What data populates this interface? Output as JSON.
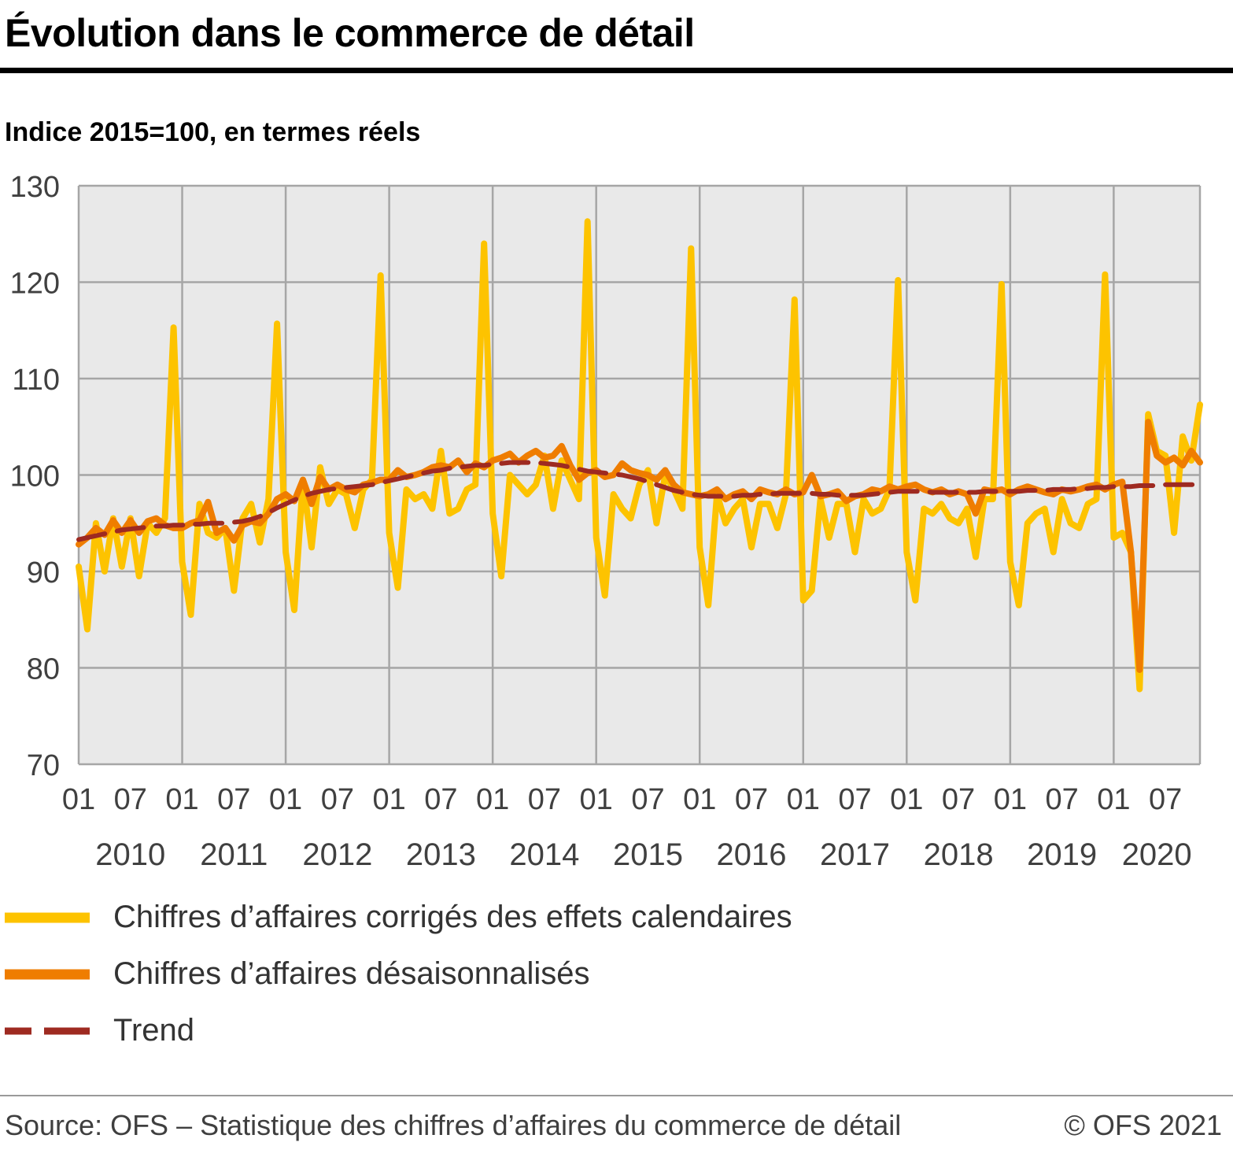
{
  "header": {
    "title": "Évolution dans le commerce de détail",
    "subtitle": "Indice 2015=100, en termes réels"
  },
  "footer": {
    "source": "Source: OFS – Statistique des chiffres d’affaires du commerce de détail",
    "copyright": "© OFS 2021"
  },
  "chart_data": {
    "type": "line",
    "title": "Évolution dans le commerce de détail",
    "subtitle": "Indice 2015=100, en termes réels",
    "x_unit": "month",
    "x_start": "2010-01",
    "x_end": "2020-11",
    "years": [
      2010,
      2011,
      2012,
      2013,
      2014,
      2015,
      2016,
      2017,
      2018,
      2019,
      2020
    ],
    "month_tick_labels": [
      "01",
      "07"
    ],
    "ylim": [
      70,
      130
    ],
    "yticks": [
      70,
      80,
      90,
      100,
      110,
      120,
      130
    ],
    "grid": true,
    "legend_position": "bottom",
    "colors": {
      "plot_bg": "#e9e9e9",
      "grid": "#a6a6a6"
    },
    "series": [
      {
        "name": "Chiffres d’affaires corrigés des effets calendaires",
        "color": "#fdc300",
        "width": 8,
        "dash": null,
        "values": [
          90.5,
          84.0,
          95.0,
          90.0,
          95.5,
          90.5,
          95.5,
          89.5,
          95.0,
          94.0,
          95.5,
          115.3,
          91.0,
          85.5,
          97.0,
          94.0,
          93.5,
          94.5,
          88.0,
          95.5,
          97.0,
          93.0,
          97.5,
          115.7,
          92.0,
          86.0,
          99.5,
          92.5,
          100.8,
          97.0,
          98.5,
          98.0,
          94.5,
          98.5,
          99.5,
          120.7,
          94.0,
          88.3,
          98.5,
          97.5,
          98.0,
          96.5,
          102.5,
          96.0,
          96.5,
          98.5,
          99.0,
          124.0,
          96.0,
          89.5,
          100.0,
          99.0,
          98.0,
          99.0,
          102.0,
          96.5,
          101.5,
          99.5,
          97.5,
          126.3,
          93.5,
          87.5,
          98.0,
          96.5,
          95.5,
          99.0,
          100.5,
          95.0,
          100.0,
          98.5,
          96.5,
          123.5,
          92.5,
          86.5,
          98.0,
          95.0,
          96.5,
          97.5,
          92.5,
          97.0,
          97.0,
          94.5,
          98.0,
          118.2,
          87.0,
          88.0,
          97.5,
          93.5,
          97.0,
          97.0,
          92.0,
          97.5,
          96.0,
          96.5,
          98.5,
          120.2,
          92.0,
          87.0,
          96.5,
          96.0,
          97.0,
          95.5,
          95.0,
          96.5,
          91.5,
          97.5,
          97.5,
          119.8,
          91.0,
          86.5,
          95.0,
          96.0,
          96.5,
          92.0,
          97.5,
          95.0,
          94.5,
          97.0,
          97.5,
          120.8,
          93.5,
          94.0,
          92.0,
          77.8,
          106.3,
          102.5,
          102.0,
          94.0,
          104.0,
          101.5,
          107.3
        ]
      },
      {
        "name": "Chiffres d’affaires désaisonnalisés",
        "color": "#ef7d00",
        "width": 8,
        "dash": null,
        "values": [
          92.8,
          93.5,
          94.5,
          93.8,
          95.3,
          94.0,
          95.3,
          94.0,
          95.2,
          95.5,
          94.8,
          94.5,
          94.5,
          95.0,
          95.3,
          97.2,
          94.0,
          94.5,
          93.2,
          94.8,
          95.2,
          95.0,
          96.0,
          97.5,
          98.0,
          97.3,
          99.5,
          97.0,
          99.8,
          98.5,
          99.0,
          98.5,
          98.2,
          99.0,
          99.2,
          99.5,
          99.5,
          100.5,
          99.8,
          100.0,
          100.3,
          100.8,
          101.0,
          100.8,
          101.5,
          100.3,
          101.2,
          100.8,
          101.5,
          101.8,
          102.2,
          101.3,
          102.0,
          102.5,
          101.8,
          102.0,
          103.0,
          101.0,
          99.5,
          100.2,
          100.5,
          99.8,
          100.0,
          101.2,
          100.5,
          100.2,
          100.0,
          99.5,
          100.5,
          99.0,
          98.2,
          98.0,
          97.8,
          98.0,
          98.5,
          97.5,
          98.0,
          98.3,
          97.5,
          98.5,
          98.2,
          98.0,
          98.5,
          98.0,
          98.2,
          100.0,
          97.8,
          98.0,
          98.3,
          97.3,
          97.8,
          98.0,
          98.5,
          98.3,
          98.8,
          98.5,
          98.8,
          99.0,
          98.5,
          98.2,
          98.5,
          98.0,
          98.3,
          98.0,
          96.0,
          98.5,
          98.3,
          98.5,
          98.0,
          98.5,
          98.8,
          98.5,
          98.2,
          98.0,
          98.5,
          98.3,
          98.5,
          98.8,
          99.0,
          98.5,
          99.0,
          99.3,
          92.0,
          79.8,
          105.5,
          102.0,
          101.3,
          101.8,
          101.0,
          102.5,
          101.3
        ]
      },
      {
        "name": "Trend",
        "color": "#9e2a21",
        "width": 6,
        "dash": "34 16",
        "legend_dash": "34 16 66 16",
        "values": [
          93.3,
          93.5,
          93.7,
          93.9,
          94.1,
          94.3,
          94.4,
          94.5,
          94.6,
          94.7,
          94.7,
          94.8,
          94.8,
          94.9,
          94.9,
          95.0,
          95.0,
          95.0,
          95.1,
          95.2,
          95.4,
          95.7,
          96.1,
          96.6,
          97.0,
          97.4,
          97.8,
          98.1,
          98.3,
          98.5,
          98.6,
          98.7,
          98.8,
          98.9,
          99.0,
          99.2,
          99.4,
          99.6,
          99.8,
          100.0,
          100.2,
          100.4,
          100.5,
          100.7,
          100.8,
          100.9,
          101.0,
          101.0,
          101.1,
          101.2,
          101.3,
          101.3,
          101.3,
          101.3,
          101.2,
          101.1,
          101.0,
          100.8,
          100.6,
          100.4,
          100.3,
          100.2,
          100.1,
          100.0,
          99.8,
          99.6,
          99.3,
          99.0,
          98.7,
          98.4,
          98.2,
          98.0,
          97.9,
          97.8,
          97.8,
          97.8,
          97.8,
          97.9,
          97.9,
          98.0,
          98.0,
          98.1,
          98.1,
          98.1,
          98.1,
          98.1,
          98.0,
          98.0,
          97.9,
          97.9,
          97.9,
          97.9,
          98.0,
          98.1,
          98.2,
          98.3,
          98.3,
          98.3,
          98.3,
          98.2,
          98.2,
          98.2,
          98.2,
          98.2,
          98.2,
          98.3,
          98.3,
          98.3,
          98.3,
          98.3,
          98.4,
          98.4,
          98.4,
          98.5,
          98.5,
          98.5,
          98.6,
          98.6,
          98.7,
          98.7,
          98.8,
          98.8,
          98.8,
          98.9,
          98.9,
          98.9,
          99.0,
          99.0,
          99.0,
          99.0,
          99.0
        ]
      }
    ]
  }
}
